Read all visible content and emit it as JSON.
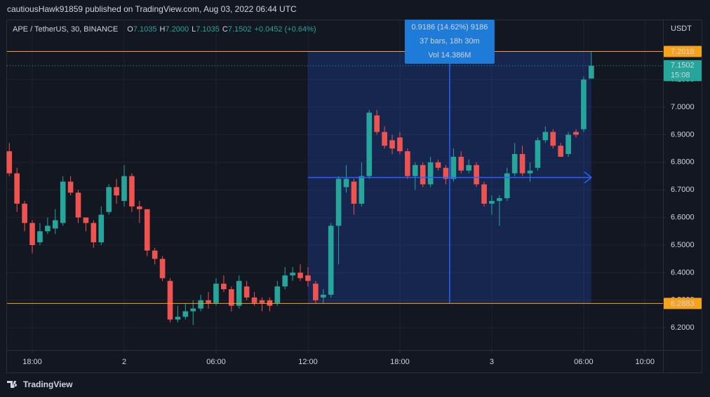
{
  "header": {
    "publisher": "cautiousHawk91859 published on TradingView.com, Aug 03, 2022 06:44 UTC"
  },
  "footer": {
    "brand": "TradingView"
  },
  "chart_data": {
    "type": "candlestick",
    "symbol": "APE / TetherUS, 30, BINANCE",
    "ohlc_legend": [
      {
        "label": "O",
        "value": "7.1035"
      },
      {
        "label": "H",
        "value": "7.2000"
      },
      {
        "label": "L",
        "value": "7.1035"
      },
      {
        "label": "C",
        "value": "7.1502"
      }
    ],
    "change": "+0.0452 (+0.64%)",
    "y_axis_label": "USDT",
    "up_color": "#26a69a",
    "down_color": "#ef5350",
    "grid": true,
    "x": [
      -7.5,
      -7,
      -6.5,
      -6,
      -5.5,
      -5,
      -4.5,
      -4,
      -3.5,
      -3,
      -2.5,
      -2,
      -1.5,
      -1,
      -0.5,
      0,
      0.5,
      1,
      1.5,
      2,
      2.5,
      3,
      3.5,
      4,
      4.5,
      5,
      5.5,
      6,
      6.5,
      7,
      7.5,
      8,
      8.5,
      9,
      9.5,
      10,
      10.5,
      11,
      11.5,
      12,
      12.5,
      13,
      13.5,
      14,
      14.5,
      15,
      15.5,
      16,
      16.5,
      17,
      17.5,
      18,
      18.5,
      19,
      19.5,
      20,
      20.5,
      21,
      21.5,
      22,
      22.5,
      23,
      23.5,
      24,
      24.5,
      25,
      25.5,
      26,
      26.5,
      27,
      27.5,
      28,
      28.5,
      29,
      29.5,
      30,
      30.5
    ],
    "open": [
      6.84,
      6.76,
      6.65,
      6.58,
      6.51,
      6.55,
      6.56,
      6.58,
      6.73,
      6.69,
      6.6,
      6.58,
      6.51,
      6.62,
      6.71,
      6.66,
      6.75,
      6.64,
      6.63,
      6.48,
      6.45,
      6.37,
      6.23,
      6.24,
      6.26,
      6.27,
      6.3,
      6.29,
      6.36,
      6.34,
      6.28,
      6.35,
      6.31,
      6.3,
      6.3,
      6.29,
      6.35,
      6.39,
      6.4,
      6.39,
      6.36,
      6.31,
      6.32,
      6.57,
      6.71,
      6.73,
      6.65,
      6.75,
      6.97,
      6.91,
      6.88,
      6.89,
      6.84,
      6.75,
      6.79,
      6.72,
      6.8,
      6.78,
      6.74,
      6.82,
      6.77,
      6.79,
      6.72,
      6.65,
      6.66,
      6.67,
      6.76,
      6.83,
      6.76,
      6.78,
      6.88,
      6.91,
      6.86,
      6.83,
      6.91,
      6.92,
      7.1035
    ],
    "high": [
      6.87,
      6.78,
      6.66,
      6.59,
      6.58,
      6.6,
      6.63,
      6.75,
      6.75,
      6.7,
      6.6,
      6.59,
      6.64,
      6.72,
      6.74,
      6.79,
      6.76,
      6.66,
      6.63,
      6.49,
      6.46,
      6.38,
      6.28,
      6.29,
      6.3,
      6.32,
      6.33,
      6.38,
      6.39,
      6.35,
      6.39,
      6.37,
      6.33,
      6.31,
      6.31,
      6.37,
      6.42,
      6.42,
      6.43,
      6.42,
      6.37,
      6.34,
      6.58,
      6.75,
      6.79,
      6.74,
      6.8,
      6.99,
      6.99,
      6.93,
      6.9,
      6.91,
      6.85,
      6.8,
      6.8,
      6.82,
      6.81,
      6.79,
      6.85,
      6.84,
      6.81,
      6.8,
      6.73,
      6.68,
      6.68,
      6.78,
      6.87,
      6.86,
      6.8,
      6.89,
      6.93,
      6.92,
      6.87,
      6.91,
      6.92,
      7.11,
      7.2
    ],
    "low": [
      6.75,
      6.62,
      6.55,
      6.47,
      6.5,
      6.54,
      6.54,
      6.57,
      6.68,
      6.58,
      6.55,
      6.49,
      6.5,
      6.61,
      6.65,
      6.64,
      6.62,
      6.58,
      6.46,
      6.43,
      6.37,
      6.22,
      6.22,
      6.23,
      6.21,
      6.26,
      6.27,
      6.28,
      6.33,
      6.26,
      6.27,
      6.3,
      6.28,
      6.26,
      6.26,
      6.28,
      6.34,
      6.37,
      6.37,
      6.35,
      6.29,
      6.29,
      6.31,
      6.43,
      6.69,
      6.61,
      6.64,
      6.74,
      6.9,
      6.85,
      6.83,
      6.83,
      6.74,
      6.7,
      6.71,
      6.71,
      6.77,
      6.72,
      6.73,
      6.76,
      6.76,
      6.71,
      6.64,
      6.61,
      6.57,
      6.66,
      6.75,
      6.75,
      6.73,
      6.77,
      6.87,
      6.85,
      6.82,
      6.82,
      6.89,
      6.91,
      7.1035
    ],
    "close": [
      6.76,
      6.65,
      6.58,
      6.5,
      6.55,
      6.57,
      6.59,
      6.73,
      6.69,
      6.6,
      6.58,
      6.51,
      6.61,
      6.71,
      6.68,
      6.75,
      6.64,
      6.63,
      6.48,
      6.45,
      6.38,
      6.23,
      6.24,
      6.26,
      6.27,
      6.3,
      6.29,
      6.36,
      6.34,
      6.28,
      6.37,
      6.31,
      6.29,
      6.29,
      6.28,
      6.35,
      6.39,
      6.4,
      6.38,
      6.37,
      6.3,
      6.32,
      6.57,
      6.74,
      6.74,
      6.65,
      6.75,
      6.98,
      6.91,
      6.86,
      6.85,
      6.84,
      6.75,
      6.79,
      6.72,
      6.8,
      6.78,
      6.74,
      6.82,
      6.77,
      6.79,
      6.72,
      6.65,
      6.66,
      6.67,
      6.76,
      6.83,
      6.76,
      6.77,
      6.88,
      6.91,
      6.86,
      6.82,
      6.9,
      6.9,
      7.1,
      7.1502
    ],
    "xlim": [
      -7.65,
      35.18
    ],
    "xticks": [
      {
        "value": -6,
        "label": "18:00"
      },
      {
        "value": 0,
        "label": "2"
      },
      {
        "value": 6,
        "label": "06:00"
      },
      {
        "value": 12,
        "label": "12:00"
      },
      {
        "value": 18,
        "label": "18:00"
      },
      {
        "value": 24,
        "label": "3"
      },
      {
        "value": 30,
        "label": "06:00"
      },
      {
        "value": 34,
        "label": "10:00"
      }
    ],
    "ylim": [
      6.1193,
      7.3122
    ],
    "yticks": [
      {
        "value": 6.2,
        "label": "6.2000"
      },
      {
        "value": 6.3,
        "label": "6.3000"
      },
      {
        "value": 6.4,
        "label": "6.4000"
      },
      {
        "value": 6.5,
        "label": "6.5000"
      },
      {
        "value": 6.6,
        "label": "6.6000"
      },
      {
        "value": 6.7,
        "label": "6.7000"
      },
      {
        "value": 6.8,
        "label": "6.8000"
      },
      {
        "value": 6.9,
        "label": "6.9000"
      },
      {
        "value": 7.0,
        "label": "7.0000"
      },
      {
        "value": 7.1,
        "label": "7.1000"
      }
    ],
    "price_lines": [
      {
        "value": 7.2018,
        "label": "7.2018",
        "color": "#f7a21b"
      },
      {
        "value": 6.2883,
        "label": "6.2883",
        "color": "#f7a21b"
      }
    ],
    "last_price": {
      "value": 7.1502,
      "label": "7.1502",
      "countdown": "15:08",
      "color": "#26a69a"
    },
    "measure": {
      "xrange": [
        12,
        30.5
      ],
      "color": "#2962ff",
      "box_color": "#1e7bd8",
      "text": [
        "0.9186 (14.62%) 9186",
        "37 bars, 18h 30m",
        "Vol 14.386M"
      ]
    }
  }
}
